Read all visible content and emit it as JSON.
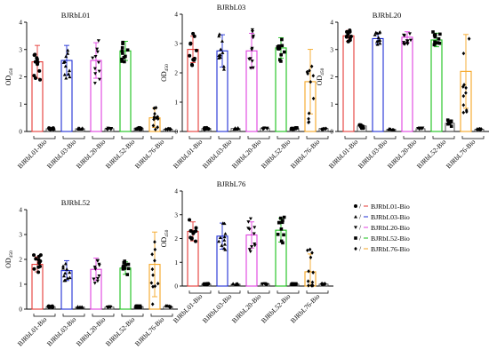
{
  "chart_data": [
    {
      "type": "bar",
      "title": "BJRbL01",
      "ylabel": "OD450",
      "ylim": [
        0,
        4
      ],
      "yticks": [
        0,
        1,
        2,
        3,
        4
      ],
      "categories": [
        "BJRbL01-Bio",
        "BJRbL03-Bio",
        "BJRbL20-Bio",
        "BJRbL52-Bio",
        "BJRbL76-Bio"
      ],
      "series": [
        {
          "name": "BJRbL01-Bio",
          "values": [
            2.55,
            2.6,
            2.6,
            2.95,
            0.5
          ],
          "errors": [
            0.6,
            0.55,
            0.65,
            0.35,
            0.35
          ]
        },
        {
          "values": [
            0.1,
            0.1,
            0.1,
            0.12,
            0.08
          ],
          "errors": [
            0.03,
            0.03,
            0.03,
            0.04,
            0.02
          ]
        }
      ]
    },
    {
      "type": "bar",
      "title": "BJRbL03",
      "ylabel": "OD450",
      "ylim": [
        0,
        4
      ],
      "yticks": [
        0,
        1,
        2,
        3,
        4
      ],
      "categories": [
        "BJRbL01-Bio",
        "BJRbL03-Bio",
        "BJRbL20-Bio",
        "BJRbL52-Bio",
        "BJRbL76-Bio"
      ],
      "series": [
        {
          "values": [
            2.8,
            2.75,
            2.75,
            2.85,
            1.7
          ],
          "errors": [
            0.45,
            0.55,
            0.6,
            0.35,
            1.1
          ]
        },
        {
          "values": [
            0.1,
            0.1,
            0.1,
            0.1,
            0.1
          ],
          "errors": [
            0.03,
            0.03,
            0.03,
            0.03,
            0.03
          ]
        }
      ]
    },
    {
      "type": "bar",
      "title": "BJRbL20",
      "ylabel": "OD450",
      "ylim": [
        0,
        4
      ],
      "yticks": [
        0,
        1,
        2,
        3,
        4
      ],
      "categories": [
        "BJRbL01-Bio",
        "BJRbL03-Bio",
        "BJRbL20-Bio",
        "BJRbL52-Bio",
        "BJRbL76-Bio"
      ],
      "series": [
        {
          "values": [
            3.5,
            3.4,
            3.45,
            3.35,
            2.2
          ],
          "errors": [
            0.2,
            0.2,
            0.2,
            0.25,
            1.35
          ]
        },
        {
          "values": [
            0.2,
            0.08,
            0.1,
            0.3,
            0.08
          ],
          "errors": [
            0.08,
            0.02,
            0.03,
            0.12,
            0.02
          ]
        }
      ]
    },
    {
      "type": "bar",
      "title": "BJRbL52",
      "ylabel": "OD450",
      "ylim": [
        0,
        4
      ],
      "yticks": [
        0,
        1,
        2,
        3,
        4
      ],
      "categories": [
        "BJRbL01-Bio",
        "BJRbL03-Bio",
        "BJRbL20-Bio",
        "BJRbL52-Bio",
        "BJRbL76-Bio"
      ],
      "series": [
        {
          "values": [
            1.8,
            1.55,
            1.6,
            1.65,
            1.8
          ],
          "errors": [
            0.3,
            0.4,
            0.45,
            0.25,
            1.3
          ]
        },
        {
          "values": [
            0.1,
            0.08,
            0.08,
            0.1,
            0.1
          ],
          "errors": [
            0.03,
            0.02,
            0.02,
            0.03,
            0.03
          ]
        }
      ]
    },
    {
      "type": "bar",
      "title": "BJRbL76",
      "ylabel": "OD450",
      "ylim": [
        0,
        4
      ],
      "yticks": [
        0,
        1,
        2,
        3,
        4
      ],
      "categories": [
        "BJRbL01-Bio",
        "BJRbL03-Bio",
        "BJRbL20-Bio",
        "BJRbL52-Bio",
        "BJRbL76-Bio"
      ],
      "series": [
        {
          "values": [
            2.3,
            2.1,
            2.15,
            2.35,
            0.6
          ],
          "errors": [
            0.4,
            0.55,
            0.55,
            0.5,
            0.75
          ]
        },
        {
          "values": [
            0.08,
            0.08,
            0.08,
            0.08,
            0.08
          ],
          "errors": [
            0.02,
            0.02,
            0.02,
            0.02,
            0.02
          ]
        }
      ]
    }
  ],
  "legend": {
    "items": [
      {
        "label": "BJRbL01-Bio",
        "color": "#e53935",
        "marker": "●"
      },
      {
        "label": "BJRbL03-Bio",
        "color": "#1f2fd6",
        "marker": "▲"
      },
      {
        "label": "BJRbL20-Bio",
        "color": "#e040e0",
        "marker": "▼"
      },
      {
        "label": "BJRbL52-Bio",
        "color": "#19c119",
        "marker": "■"
      },
      {
        "label": "BJRbL76-Bio",
        "color": "#f5a623",
        "marker": "♦"
      }
    ]
  },
  "style": {
    "group_colors": [
      "#e53935",
      "#1f2fd6",
      "#e040e0",
      "#19c119",
      "#f5a623"
    ],
    "control_color": "#333333"
  }
}
